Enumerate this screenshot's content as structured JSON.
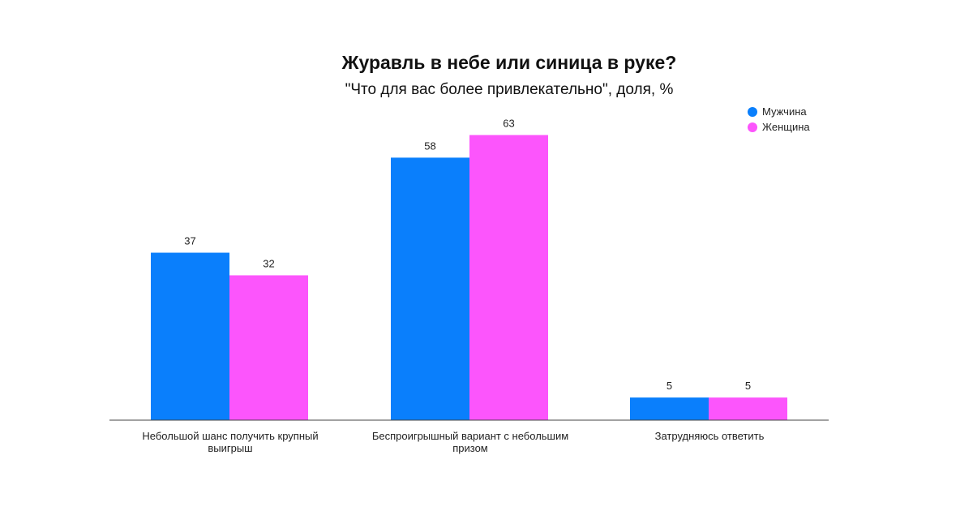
{
  "chart_data": {
    "type": "bar",
    "title": "Журавль в небе или синица в руке?",
    "subtitle": "\"Что для вас более привлекательно\", доля, %",
    "categories": [
      "Небольшой шанс получить крупный выигрыш",
      "Беспроигрышный вариант с небольшим призом",
      "Затрудняюсь ответить"
    ],
    "series": [
      {
        "name": "Мужчина",
        "color": "#0a7ffc",
        "values": [
          37,
          58,
          5
        ]
      },
      {
        "name": "Женщина",
        "color": "#fc55fc",
        "values": [
          32,
          63,
          5
        ]
      }
    ],
    "ylim": [
      0,
      70
    ],
    "grid": false,
    "legend_position": "top-right",
    "data_labels": true
  }
}
